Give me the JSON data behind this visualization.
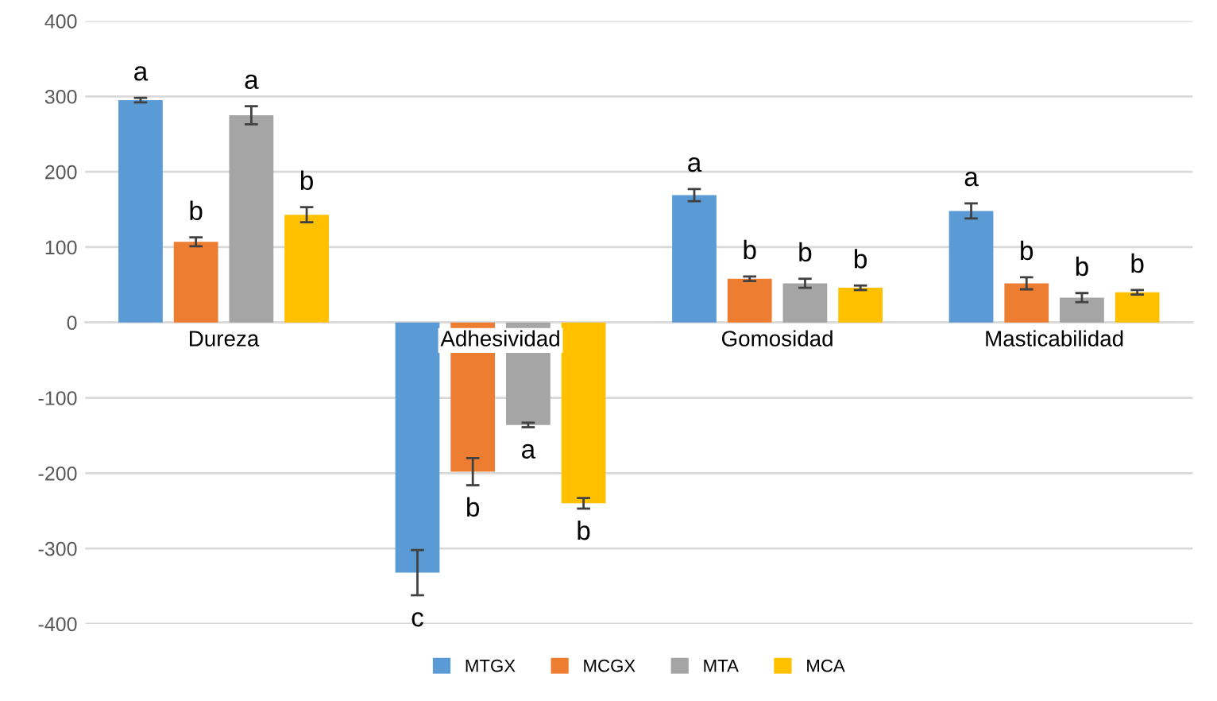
{
  "chart_data": {
    "type": "bar",
    "categories": [
      "Dureza",
      "Adhesividad",
      "Gomosidad",
      "Masticabilidad"
    ],
    "series": [
      {
        "name": "MTGX",
        "color": "#5b9bd5",
        "values": [
          295,
          -332,
          169,
          148
        ],
        "errors": [
          3,
          30,
          8,
          10
        ],
        "value_labels": [
          "a",
          "c",
          "a",
          "a"
        ]
      },
      {
        "name": "MCGX",
        "color": "#ed7d31",
        "values": [
          107,
          -198,
          58,
          52
        ],
        "errors": [
          6,
          18,
          3,
          8
        ],
        "value_labels": [
          "b",
          "b",
          "b",
          "b"
        ]
      },
      {
        "name": "MTA",
        "color": "#a5a5a5",
        "values": [
          275,
          -136,
          52,
          33
        ],
        "errors": [
          12,
          3,
          6,
          6
        ],
        "value_labels": [
          "a",
          "a",
          "b",
          "b"
        ]
      },
      {
        "name": "MCA",
        "color": "#ffc000",
        "values": [
          143,
          -240,
          46,
          40
        ],
        "errors": [
          10,
          7,
          3,
          3
        ],
        "value_labels": [
          "b",
          "b",
          "b",
          "b"
        ]
      }
    ],
    "ylim": [
      -400,
      400
    ],
    "yticks": [
      -400,
      -300,
      -200,
      -100,
      0,
      100,
      200,
      300,
      400
    ],
    "grid": "y",
    "legend": "bottom"
  }
}
